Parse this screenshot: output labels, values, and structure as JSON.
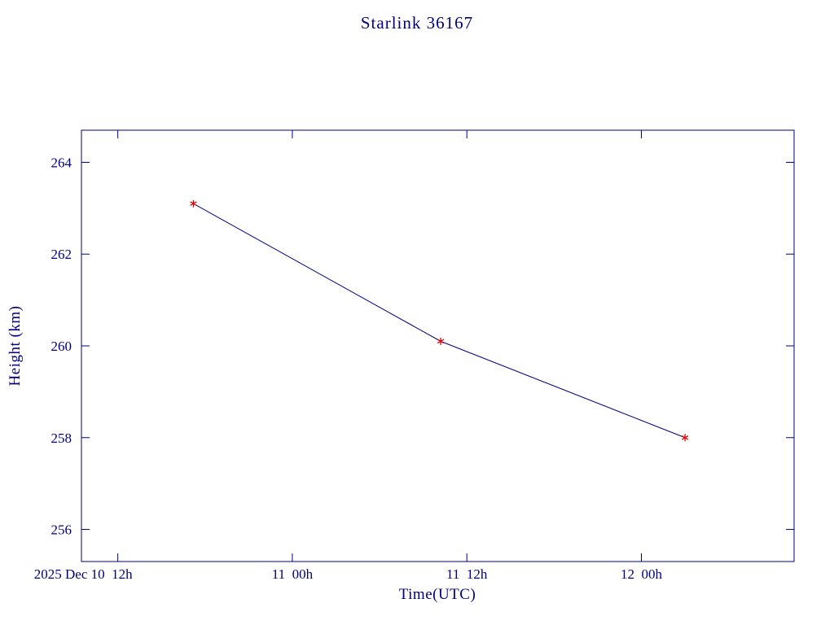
{
  "page": {
    "background": "#ffffff"
  },
  "chart_data": {
    "type": "line",
    "title": "Starlink 36167",
    "xlabel": "Time(UTC)",
    "ylabel": "Height (km)",
    "x_units": "hours since 2025 Dec 10 00:00 UTC",
    "x_range_hours": [
      9.5,
      58.5
    ],
    "y_range": [
      255.3,
      264.7
    ],
    "x_ticks": [
      {
        "hours": 12,
        "label": "2025 Dec 10  12h",
        "align": "end",
        "dx": 18
      },
      {
        "hours": 24,
        "label": "11  00h",
        "align": "middle",
        "dx": 0
      },
      {
        "hours": 36,
        "label": "11  12h",
        "align": "middle",
        "dx": 0
      },
      {
        "hours": 48,
        "label": "12  00h",
        "align": "middle",
        "dx": 0
      }
    ],
    "y_ticks": [
      256,
      258,
      260,
      262,
      264
    ],
    "series": [
      {
        "name": "height-vs-time",
        "marker": "asterisk",
        "points": [
          {
            "hours": 17.2,
            "time_label": "2025 Dec 10 ~17:10 UTC",
            "height_km": 263.1
          },
          {
            "hours": 34.2,
            "time_label": "2025 Dec 11 ~10:10 UTC",
            "height_km": 260.1
          },
          {
            "hours": 51.0,
            "time_label": "2025 Dec 12 ~03:00 UTC",
            "height_km": 258.0
          }
        ]
      }
    ],
    "grid": false,
    "legend": "none",
    "colors": {
      "text": "#000080",
      "axis": "#000080",
      "line": "#000080",
      "marker": "#dd0000"
    }
  }
}
